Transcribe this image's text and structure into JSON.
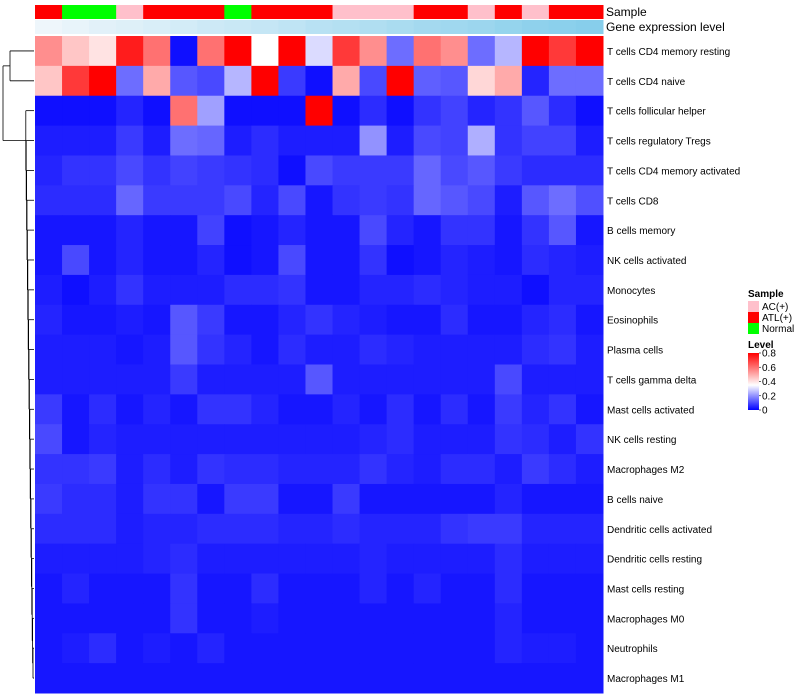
{
  "chart_data": {
    "type": "heatmap",
    "title": "",
    "annotation_rows": [
      "Sample",
      "Gene expression level"
    ],
    "rows": [
      "T cells CD4 memory resting",
      "T cells CD4 naive",
      "T cells follicular helper",
      "T cells regulatory  Tregs",
      "T cells CD4 memory activated",
      "T cells CD8",
      "B cells memory",
      "NK cells activated",
      "Monocytes",
      "Eosinophils",
      "Plasma cells",
      "T cells gamma delta",
      "Mast cells activated",
      "NK cells resting",
      "Macrophages M2",
      "B cells naive",
      "Dendritic cells activated",
      "Dendritic cells resting",
      "Mast cells resting",
      "Macrophages M0",
      "Neutrophils",
      "Macrophages M1"
    ],
    "sample_groups": [
      "ATL(+)",
      "Normal",
      "Normal",
      "AC(+)",
      "ATL(+)",
      "ATL(+)",
      "ATL(+)",
      "Normal",
      "ATL(+)",
      "ATL(+)",
      "ATL(+)",
      "AC(+)",
      "AC(+)",
      "AC(+)",
      "ATL(+)",
      "ATL(+)",
      "AC(+)",
      "ATL(+)",
      "AC(+)",
      "ATL(+)",
      "ATL(+)"
    ],
    "expression_level": [
      0.02,
      0.05,
      0.08,
      0.1,
      0.12,
      0.15,
      0.18,
      0.2,
      0.22,
      0.25,
      0.28,
      0.3,
      0.32,
      0.35,
      0.38,
      0.4,
      0.42,
      0.45,
      0.48,
      0.5,
      0.52
    ],
    "values": [
      [
        0.55,
        0.45,
        0.4,
        0.75,
        0.6,
        0.02,
        0.6,
        0.8,
        0.35,
        0.8,
        0.3,
        0.7,
        0.55,
        0.15,
        0.6,
        0.55,
        0.15,
        0.25,
        0.85,
        0.7,
        0.85
      ],
      [
        0.45,
        0.7,
        0.8,
        0.15,
        0.5,
        0.12,
        0.1,
        0.25,
        0.85,
        0.08,
        0.02,
        0.5,
        0.1,
        0.85,
        0.13,
        0.12,
        0.42,
        0.5,
        0.05,
        0.15,
        0.15
      ],
      [
        0.02,
        0.02,
        0.02,
        0.05,
        0.02,
        0.6,
        0.22,
        0.02,
        0.02,
        0.02,
        0.8,
        0.02,
        0.06,
        0.02,
        0.07,
        0.09,
        0.05,
        0.07,
        0.12,
        0.06,
        0.02
      ],
      [
        0.04,
        0.04,
        0.04,
        0.08,
        0.04,
        0.15,
        0.14,
        0.04,
        0.06,
        0.04,
        0.04,
        0.04,
        0.2,
        0.04,
        0.1,
        0.09,
        0.24,
        0.07,
        0.09,
        0.09,
        0.04
      ],
      [
        0.05,
        0.07,
        0.07,
        0.1,
        0.07,
        0.09,
        0.08,
        0.07,
        0.06,
        0.02,
        0.1,
        0.08,
        0.08,
        0.08,
        0.14,
        0.1,
        0.12,
        0.08,
        0.06,
        0.06,
        0.06
      ],
      [
        0.06,
        0.06,
        0.06,
        0.14,
        0.08,
        0.08,
        0.08,
        0.1,
        0.05,
        0.1,
        0.03,
        0.07,
        0.08,
        0.07,
        0.14,
        0.12,
        0.1,
        0.04,
        0.12,
        0.15,
        0.11
      ],
      [
        0.03,
        0.03,
        0.03,
        0.05,
        0.03,
        0.03,
        0.09,
        0.02,
        0.03,
        0.05,
        0.03,
        0.03,
        0.1,
        0.05,
        0.03,
        0.07,
        0.07,
        0.03,
        0.07,
        0.12,
        0.03
      ],
      [
        0.03,
        0.1,
        0.03,
        0.05,
        0.03,
        0.03,
        0.05,
        0.02,
        0.03,
        0.1,
        0.03,
        0.03,
        0.07,
        0.02,
        0.03,
        0.05,
        0.04,
        0.03,
        0.06,
        0.05,
        0.04
      ],
      [
        0.04,
        0.02,
        0.04,
        0.07,
        0.04,
        0.04,
        0.04,
        0.06,
        0.06,
        0.07,
        0.03,
        0.03,
        0.05,
        0.05,
        0.06,
        0.05,
        0.04,
        0.04,
        0.02,
        0.05,
        0.05
      ],
      [
        0.05,
        0.03,
        0.03,
        0.04,
        0.03,
        0.12,
        0.08,
        0.03,
        0.03,
        0.05,
        0.07,
        0.05,
        0.04,
        0.03,
        0.03,
        0.06,
        0.03,
        0.03,
        0.05,
        0.06,
        0.03
      ],
      [
        0.04,
        0.04,
        0.04,
        0.03,
        0.04,
        0.12,
        0.07,
        0.05,
        0.03,
        0.06,
        0.04,
        0.04,
        0.06,
        0.05,
        0.04,
        0.04,
        0.04,
        0.04,
        0.06,
        0.07,
        0.04
      ],
      [
        0.04,
        0.04,
        0.04,
        0.04,
        0.04,
        0.08,
        0.04,
        0.04,
        0.04,
        0.04,
        0.12,
        0.04,
        0.04,
        0.04,
        0.04,
        0.04,
        0.04,
        0.1,
        0.04,
        0.04,
        0.04
      ],
      [
        0.08,
        0.03,
        0.06,
        0.03,
        0.05,
        0.03,
        0.07,
        0.07,
        0.05,
        0.03,
        0.03,
        0.05,
        0.03,
        0.06,
        0.03,
        0.06,
        0.03,
        0.08,
        0.05,
        0.07,
        0.03
      ],
      [
        0.1,
        0.03,
        0.05,
        0.04,
        0.04,
        0.04,
        0.04,
        0.04,
        0.04,
        0.04,
        0.04,
        0.04,
        0.05,
        0.06,
        0.04,
        0.04,
        0.04,
        0.07,
        0.06,
        0.04,
        0.07
      ],
      [
        0.07,
        0.07,
        0.08,
        0.04,
        0.06,
        0.04,
        0.07,
        0.06,
        0.06,
        0.05,
        0.05,
        0.05,
        0.07,
        0.05,
        0.04,
        0.06,
        0.06,
        0.04,
        0.08,
        0.06,
        0.04
      ],
      [
        0.08,
        0.06,
        0.06,
        0.04,
        0.07,
        0.07,
        0.03,
        0.08,
        0.08,
        0.03,
        0.03,
        0.08,
        0.03,
        0.03,
        0.03,
        0.03,
        0.03,
        0.05,
        0.03,
        0.03,
        0.03
      ],
      [
        0.06,
        0.06,
        0.06,
        0.04,
        0.05,
        0.05,
        0.06,
        0.06,
        0.06,
        0.05,
        0.05,
        0.06,
        0.05,
        0.05,
        0.05,
        0.07,
        0.08,
        0.08,
        0.05,
        0.05,
        0.05
      ],
      [
        0.04,
        0.04,
        0.04,
        0.04,
        0.05,
        0.06,
        0.04,
        0.04,
        0.04,
        0.04,
        0.04,
        0.04,
        0.05,
        0.04,
        0.04,
        0.04,
        0.04,
        0.06,
        0.04,
        0.04,
        0.04
      ],
      [
        0.03,
        0.05,
        0.03,
        0.03,
        0.03,
        0.07,
        0.03,
        0.03,
        0.06,
        0.03,
        0.03,
        0.03,
        0.05,
        0.03,
        0.05,
        0.03,
        0.03,
        0.06,
        0.03,
        0.03,
        0.03
      ],
      [
        0.03,
        0.03,
        0.03,
        0.03,
        0.03,
        0.07,
        0.03,
        0.03,
        0.04,
        0.03,
        0.03,
        0.03,
        0.03,
        0.03,
        0.03,
        0.03,
        0.03,
        0.05,
        0.03,
        0.03,
        0.03
      ],
      [
        0.03,
        0.04,
        0.06,
        0.03,
        0.04,
        0.03,
        0.05,
        0.03,
        0.03,
        0.03,
        0.03,
        0.03,
        0.03,
        0.03,
        0.03,
        0.03,
        0.03,
        0.05,
        0.04,
        0.04,
        0.03
      ],
      [
        0.03,
        0.03,
        0.03,
        0.03,
        0.03,
        0.03,
        0.03,
        0.03,
        0.03,
        0.03,
        0.03,
        0.03,
        0.03,
        0.03,
        0.03,
        0.03,
        0.03,
        0.03,
        0.03,
        0.03,
        0.03
      ]
    ],
    "color_scale": {
      "min": 0,
      "max": 0.8,
      "colors": [
        "#0000ff",
        "#ffffff",
        "#ff0000"
      ],
      "midpoint": 0.35
    },
    "legend": {
      "sample_title": "Sample",
      "sample_items": [
        {
          "label": "AC(+)",
          "color": "#ffc0cb"
        },
        {
          "label": "ATL(+)",
          "color": "#ff0000"
        },
        {
          "label": "Normal",
          "color": "#00ff00"
        }
      ],
      "level_title": "Level",
      "level_ticks": [
        "0.8",
        "0.6",
        "0.4",
        "0.2",
        "0"
      ],
      "level_tick_values": [
        0.8,
        0.6,
        0.4,
        0.2,
        0
      ]
    },
    "expression_colors": {
      "low": "#eef6fb",
      "high": "#87ceeb"
    },
    "dendrogram": "row clustering (left side)"
  }
}
